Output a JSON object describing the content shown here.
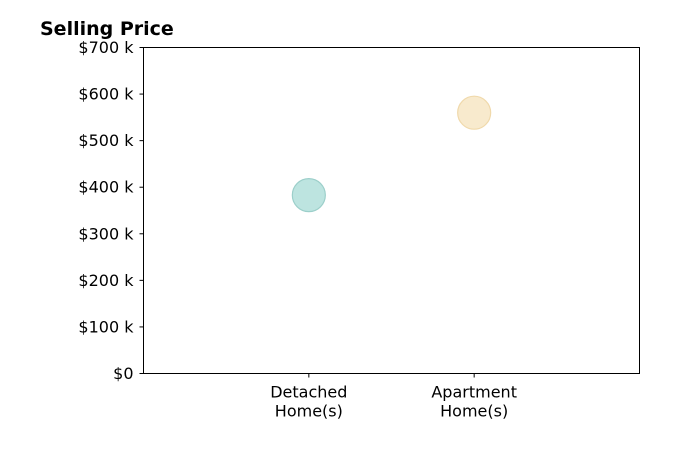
{
  "chart_data": {
    "type": "scatter",
    "title": "Selling Price",
    "xlabel": "",
    "ylabel": "",
    "categories": [
      [
        "Detached",
        "Home(s)"
      ],
      [
        "Apartment",
        "Home(s)"
      ]
    ],
    "values": [
      383000,
      560000
    ],
    "colors": [
      "#b2dfdb",
      "#f7e6c4"
    ],
    "edge_colors": [
      "#9ccfca",
      "#f0d9ab"
    ],
    "xlim": [
      0,
      3
    ],
    "ylim": [
      0,
      700000
    ],
    "yticks": [
      0,
      100000,
      200000,
      300000,
      400000,
      500000,
      600000,
      700000
    ],
    "ytick_labels": [
      "$0",
      "$100 k",
      "$200 k",
      "$300 k",
      "$400 k",
      "$500 k",
      "$600 k",
      "$700 k"
    ],
    "grid": false,
    "legend": "none"
  }
}
